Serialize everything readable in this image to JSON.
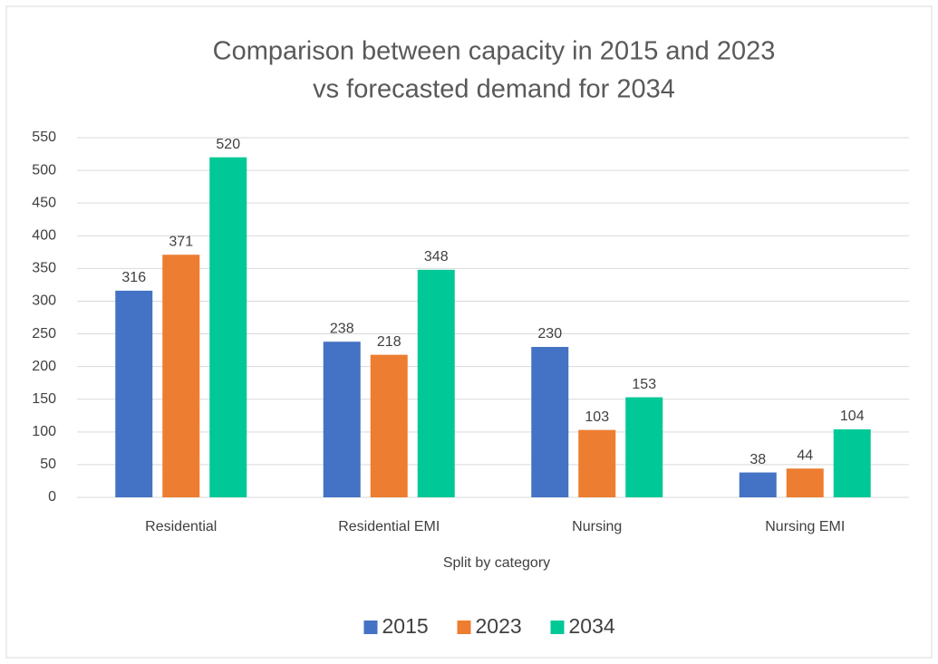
{
  "chart_data": {
    "type": "bar",
    "title": [
      "Comparison between capacity in 2015 and 2023",
      "vs forecasted demand for 2034"
    ],
    "x_label": "Split by category",
    "categories": [
      "Residential",
      "Residential EMI",
      "Nursing",
      "Nursing EMI"
    ],
    "series": [
      {
        "name": "2015",
        "color": "#4472c4",
        "values": [
          316,
          238,
          230,
          38
        ]
      },
      {
        "name": "2023",
        "color": "#ed7d31",
        "values": [
          371,
          218,
          103,
          44
        ]
      },
      {
        "name": "2034",
        "color": "#00c896",
        "values": [
          520,
          348,
          153,
          104
        ]
      }
    ],
    "ylim": [
      0,
      550
    ],
    "yticks": [
      0,
      50,
      100,
      150,
      200,
      250,
      300,
      350,
      400,
      450,
      500,
      550
    ],
    "grid": true,
    "legend": "bottom"
  }
}
